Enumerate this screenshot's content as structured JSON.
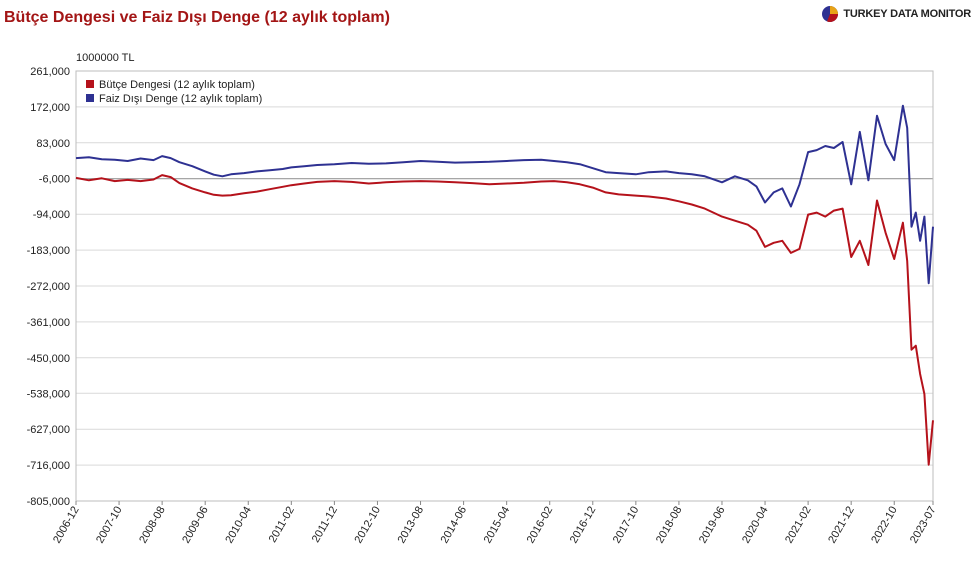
{
  "title": "Bütçe Dengesi ve Faiz Dışı Denge (12 aylık toplam)",
  "logo": {
    "text": "TURKEY DATA MONITOR",
    "icon": "pie-logo-icon"
  },
  "unit_label": "1000000 TL",
  "colors": {
    "budget": "#b5121b",
    "primary": "#2e3192",
    "grid": "#d9d9d9",
    "zero_line": "#999999"
  },
  "chart_data": {
    "type": "line",
    "title": "Bütçe Dengesi ve Faiz Dışı Denge (12 aylık toplam)",
    "ylabel": "1000000 TL",
    "ylim": [
      -805000,
      261000
    ],
    "yticks": [
      261000,
      172000,
      83000,
      -6000,
      -94000,
      -183000,
      -272000,
      -361000,
      -450000,
      -538000,
      -627000,
      -716000,
      -805000
    ],
    "ytick_labels": [
      "261,000",
      "172,000",
      "83,000",
      "-6,000",
      "-94,000",
      "-183,000",
      "-272,000",
      "-361,000",
      "-450,000",
      "-538,000",
      "-627,000",
      "-716,000",
      "-805,000"
    ],
    "xrange": [
      "2006-12",
      "2023-07"
    ],
    "xticks": [
      "2006-12",
      "2007-10",
      "2008-08",
      "2009-06",
      "2010-04",
      "2011-02",
      "2011-12",
      "2012-10",
      "2013-08",
      "2014-06",
      "2015-04",
      "2016-02",
      "2016-12",
      "2017-10",
      "2018-08",
      "2019-06",
      "2020-04",
      "2021-02",
      "2021-12",
      "2022-10",
      "2023-07"
    ],
    "legend_position": "top-left",
    "series": [
      {
        "name": "Bütçe Dengesi (12 aylık toplam)",
        "color": "#b5121b",
        "points": [
          [
            "2006-12",
            -4000
          ],
          [
            "2007-03",
            -10000
          ],
          [
            "2007-06",
            -5000
          ],
          [
            "2007-09",
            -12000
          ],
          [
            "2007-12",
            -9000
          ],
          [
            "2008-03",
            -12000
          ],
          [
            "2008-06",
            -8000
          ],
          [
            "2008-08",
            3000
          ],
          [
            "2008-10",
            -2000
          ],
          [
            "2008-12",
            -17000
          ],
          [
            "2009-03",
            -30000
          ],
          [
            "2009-06",
            -40000
          ],
          [
            "2009-08",
            -46000
          ],
          [
            "2009-10",
            -48000
          ],
          [
            "2009-12",
            -47000
          ],
          [
            "2010-03",
            -42000
          ],
          [
            "2010-06",
            -38000
          ],
          [
            "2010-09",
            -32000
          ],
          [
            "2010-12",
            -26000
          ],
          [
            "2011-02",
            -22000
          ],
          [
            "2011-05",
            -18000
          ],
          [
            "2011-08",
            -14000
          ],
          [
            "2011-12",
            -12000
          ],
          [
            "2012-04",
            -14000
          ],
          [
            "2012-08",
            -18000
          ],
          [
            "2012-12",
            -15000
          ],
          [
            "2013-04",
            -13000
          ],
          [
            "2013-08",
            -12000
          ],
          [
            "2013-12",
            -13000
          ],
          [
            "2014-04",
            -15000
          ],
          [
            "2014-08",
            -17000
          ],
          [
            "2014-12",
            -20000
          ],
          [
            "2015-04",
            -18000
          ],
          [
            "2015-08",
            -16000
          ],
          [
            "2015-12",
            -13000
          ],
          [
            "2016-03",
            -12000
          ],
          [
            "2016-06",
            -15000
          ],
          [
            "2016-09",
            -20000
          ],
          [
            "2016-12",
            -28000
          ],
          [
            "2017-03",
            -40000
          ],
          [
            "2017-06",
            -45000
          ],
          [
            "2017-10",
            -48000
          ],
          [
            "2018-01",
            -50000
          ],
          [
            "2018-05",
            -55000
          ],
          [
            "2018-08",
            -62000
          ],
          [
            "2018-11",
            -70000
          ],
          [
            "2019-02",
            -80000
          ],
          [
            "2019-06",
            -100000
          ],
          [
            "2019-09",
            -110000
          ],
          [
            "2019-12",
            -120000
          ],
          [
            "2020-02",
            -135000
          ],
          [
            "2020-04",
            -175000
          ],
          [
            "2020-06",
            -165000
          ],
          [
            "2020-08",
            -160000
          ],
          [
            "2020-10",
            -190000
          ],
          [
            "2020-12",
            -180000
          ],
          [
            "2021-02",
            -95000
          ],
          [
            "2021-04",
            -90000
          ],
          [
            "2021-06",
            -100000
          ],
          [
            "2021-08",
            -85000
          ],
          [
            "2021-10",
            -80000
          ],
          [
            "2021-12",
            -200000
          ],
          [
            "2022-02",
            -160000
          ],
          [
            "2022-04",
            -220000
          ],
          [
            "2022-06",
            -60000
          ],
          [
            "2022-08",
            -140000
          ],
          [
            "2022-10",
            -205000
          ],
          [
            "2022-12",
            -115000
          ],
          [
            "2023-01",
            -210000
          ],
          [
            "2023-02",
            -430000
          ],
          [
            "2023-03",
            -420000
          ],
          [
            "2023-04",
            -490000
          ],
          [
            "2023-05",
            -540000
          ],
          [
            "2023-06",
            -715000
          ],
          [
            "2023-07",
            -605000
          ]
        ]
      },
      {
        "name": "Faiz Dışı Denge (12 aylık toplam)",
        "color": "#2e3192",
        "points": [
          [
            "2006-12",
            45000
          ],
          [
            "2007-03",
            47000
          ],
          [
            "2007-06",
            42000
          ],
          [
            "2007-09",
            41000
          ],
          [
            "2007-12",
            38000
          ],
          [
            "2008-03",
            44000
          ],
          [
            "2008-06",
            40000
          ],
          [
            "2008-08",
            50000
          ],
          [
            "2008-10",
            45000
          ],
          [
            "2008-12",
            35000
          ],
          [
            "2009-03",
            25000
          ],
          [
            "2009-06",
            12000
          ],
          [
            "2009-08",
            4000
          ],
          [
            "2009-10",
            0
          ],
          [
            "2009-12",
            5000
          ],
          [
            "2010-03",
            8000
          ],
          [
            "2010-06",
            12000
          ],
          [
            "2010-09",
            15000
          ],
          [
            "2010-12",
            18000
          ],
          [
            "2011-02",
            22000
          ],
          [
            "2011-05",
            25000
          ],
          [
            "2011-08",
            28000
          ],
          [
            "2011-12",
            30000
          ],
          [
            "2012-04",
            33000
          ],
          [
            "2012-08",
            31000
          ],
          [
            "2012-12",
            32000
          ],
          [
            "2013-04",
            35000
          ],
          [
            "2013-08",
            38000
          ],
          [
            "2013-12",
            36000
          ],
          [
            "2014-04",
            34000
          ],
          [
            "2014-08",
            35000
          ],
          [
            "2014-12",
            36000
          ],
          [
            "2015-04",
            38000
          ],
          [
            "2015-08",
            40000
          ],
          [
            "2015-12",
            41000
          ],
          [
            "2016-03",
            38000
          ],
          [
            "2016-06",
            35000
          ],
          [
            "2016-09",
            30000
          ],
          [
            "2016-12",
            20000
          ],
          [
            "2017-03",
            10000
          ],
          [
            "2017-06",
            8000
          ],
          [
            "2017-10",
            5000
          ],
          [
            "2018-01",
            10000
          ],
          [
            "2018-05",
            12000
          ],
          [
            "2018-08",
            8000
          ],
          [
            "2018-11",
            5000
          ],
          [
            "2019-02",
            0
          ],
          [
            "2019-06",
            -15000
          ],
          [
            "2019-09",
            0
          ],
          [
            "2019-12",
            -10000
          ],
          [
            "2020-02",
            -25000
          ],
          [
            "2020-04",
            -65000
          ],
          [
            "2020-06",
            -40000
          ],
          [
            "2020-08",
            -30000
          ],
          [
            "2020-10",
            -75000
          ],
          [
            "2020-12",
            -20000
          ],
          [
            "2021-02",
            60000
          ],
          [
            "2021-04",
            65000
          ],
          [
            "2021-06",
            75000
          ],
          [
            "2021-08",
            70000
          ],
          [
            "2021-10",
            85000
          ],
          [
            "2021-12",
            -20000
          ],
          [
            "2022-02",
            110000
          ],
          [
            "2022-04",
            -10000
          ],
          [
            "2022-06",
            150000
          ],
          [
            "2022-08",
            80000
          ],
          [
            "2022-10",
            40000
          ],
          [
            "2022-12",
            175000
          ],
          [
            "2023-01",
            120000
          ],
          [
            "2023-02",
            -125000
          ],
          [
            "2023-03",
            -90000
          ],
          [
            "2023-04",
            -160000
          ],
          [
            "2023-05",
            -100000
          ],
          [
            "2023-06",
            -265000
          ],
          [
            "2023-07",
            -125000
          ]
        ]
      }
    ]
  }
}
